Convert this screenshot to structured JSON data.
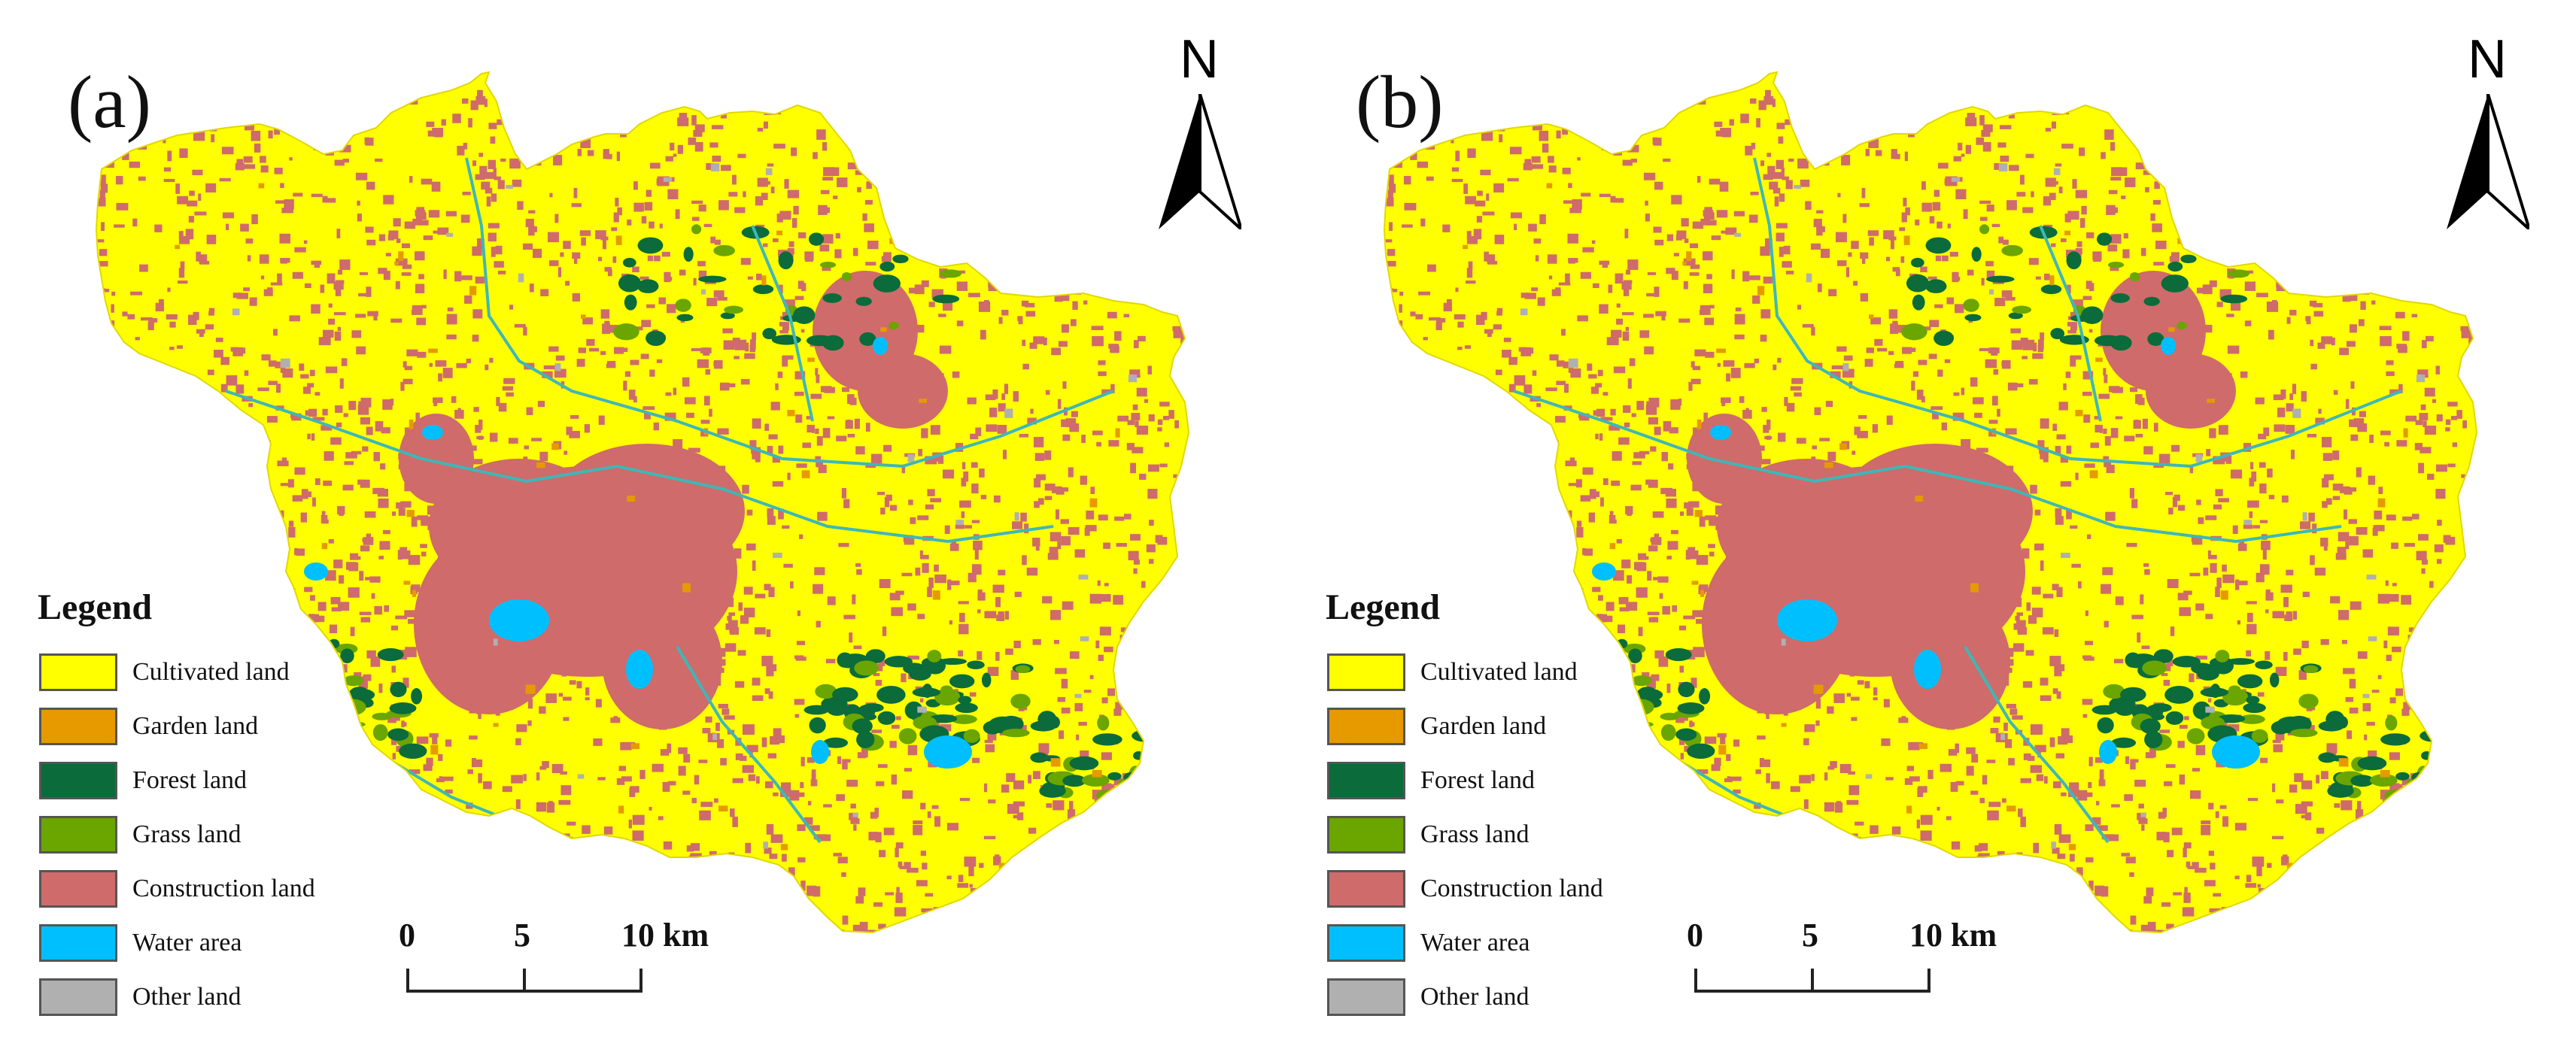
{
  "panels": [
    {
      "id": "a",
      "label": "(a)",
      "north": "N",
      "legend": {
        "title": "Legend",
        "items": [
          {
            "label": "Cultivated land",
            "color": "#ffff00"
          },
          {
            "label": "Garden land",
            "color": "#e69a00"
          },
          {
            "label": "Forest land",
            "color": "#0b6b3a"
          },
          {
            "label": "Grass land",
            "color": "#6aa500"
          },
          {
            "label": "Construction land",
            "color": "#cf6b6b"
          },
          {
            "label": "Water area",
            "color": "#00bfff"
          },
          {
            "label": "Other land",
            "color": "#b0b0b0"
          }
        ]
      },
      "scale": {
        "ticks": [
          "0",
          "5",
          "10 km"
        ]
      }
    },
    {
      "id": "b",
      "label": "(b)",
      "north": "N",
      "legend": {
        "title": "Legend",
        "items": [
          {
            "label": "Cultivated land",
            "color": "#ffff00"
          },
          {
            "label": "Garden land",
            "color": "#e69a00"
          },
          {
            "label": "Forest land",
            "color": "#0b6b3a"
          },
          {
            "label": "Grass land",
            "color": "#6aa500"
          },
          {
            "label": "Construction land",
            "color": "#cf6b6b"
          },
          {
            "label": "Water area",
            "color": "#00bfff"
          },
          {
            "label": "Other land",
            "color": "#b0b0b0"
          }
        ]
      },
      "scale": {
        "ticks": [
          "0",
          "5",
          "10 km"
        ]
      }
    }
  ]
}
